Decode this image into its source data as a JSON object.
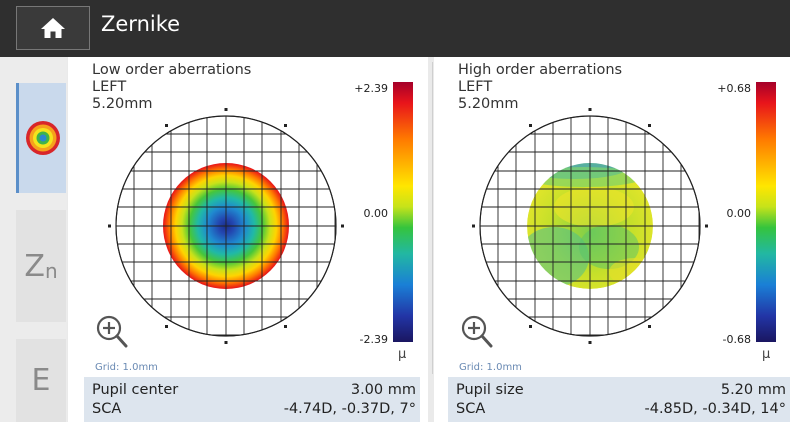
{
  "header": {
    "title": "Zernike",
    "home_icon": "home-icon"
  },
  "sidebar": {
    "items": [
      {
        "name": "map-mode",
        "icon": "color-map-icon",
        "active": true
      },
      {
        "name": "zernike-mode",
        "label": "Z",
        "sub": "n",
        "active": false
      },
      {
        "name": "e-mode",
        "label": "E",
        "active": false
      }
    ]
  },
  "panels": [
    {
      "title": "Low order aberrations",
      "eye": "LEFT",
      "diameter": "5.20mm",
      "scale": {
        "max": "+2.39",
        "mid": "0.00",
        "min": "-2.39",
        "unit": "μ"
      },
      "grid_note": "Grid: 1.0mm",
      "info": [
        {
          "key": "Pupil center",
          "value": "3.00 mm"
        },
        {
          "key": "SCA",
          "value": "-4.74D, -0.37D, 7°"
        }
      ]
    },
    {
      "title": "High order aberrations",
      "eye": "LEFT",
      "diameter": "5.20mm",
      "scale": {
        "max": "+0.68",
        "mid": "0.00",
        "min": "-0.68",
        "unit": "μ"
      },
      "grid_note": "Grid: 1.0mm",
      "info": [
        {
          "key": "Pupil size",
          "value": "5.20 mm"
        },
        {
          "key": "SCA",
          "value": "-4.85D, -0.34D, 14°"
        }
      ]
    }
  ]
}
